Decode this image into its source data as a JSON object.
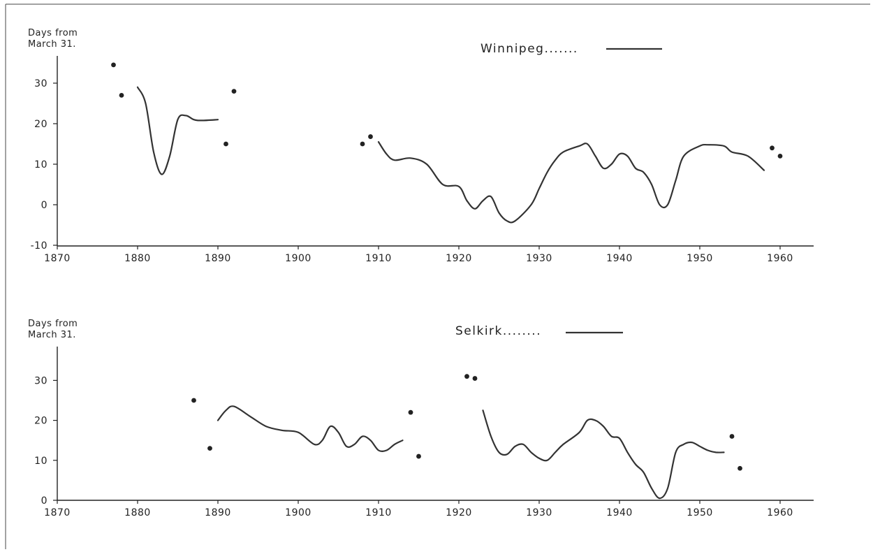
{
  "chart_data": [
    {
      "type": "line",
      "legend_label": "Winnipeg.......",
      "legend_position": "top-center",
      "ylabel_line1": "Days from",
      "ylabel_line2": "March 31.",
      "xlim": [
        1870,
        1964
      ],
      "ylim": [
        -10,
        36
      ],
      "x_ticks": [
        1870,
        1880,
        1890,
        1900,
        1910,
        1920,
        1930,
        1940,
        1950,
        1960
      ],
      "x_tick_labels": [
        "1870",
        "1880",
        "1890",
        "1900",
        "1910",
        "1920",
        "1930",
        "1940",
        "1950",
        "1960"
      ],
      "y_ticks": [
        -10,
        0,
        10,
        20,
        30
      ],
      "y_tick_labels": [
        "-10",
        "0",
        "10",
        "20",
        "30"
      ],
      "grid": false,
      "segments": [
        [
          [
            1880,
            29
          ],
          [
            1881,
            25
          ],
          [
            1882,
            13
          ],
          [
            1883,
            7.5
          ],
          [
            1884,
            12
          ],
          [
            1885,
            21
          ],
          [
            1886,
            22
          ],
          [
            1887,
            21
          ],
          [
            1888,
            20.8
          ],
          [
            1890,
            21
          ]
        ],
        [
          [
            1910,
            15.5
          ],
          [
            1911,
            12.5
          ],
          [
            1912,
            11
          ],
          [
            1914,
            11.5
          ],
          [
            1916,
            10
          ],
          [
            1918,
            5
          ],
          [
            1920,
            4.5
          ],
          [
            1921,
            1
          ],
          [
            1922,
            -1
          ],
          [
            1923,
            1
          ],
          [
            1924,
            2
          ],
          [
            1925,
            -2
          ],
          [
            1926,
            -4
          ],
          [
            1927,
            -4
          ],
          [
            1929,
            0
          ],
          [
            1930,
            4
          ],
          [
            1931,
            8
          ],
          [
            1932,
            11
          ],
          [
            1933,
            13
          ],
          [
            1935,
            14.5
          ],
          [
            1936,
            15
          ],
          [
            1937,
            12
          ],
          [
            1938,
            9
          ],
          [
            1939,
            10
          ],
          [
            1940,
            12.5
          ],
          [
            1941,
            12
          ],
          [
            1942,
            9
          ],
          [
            1943,
            8
          ],
          [
            1944,
            5
          ],
          [
            1945,
            0
          ],
          [
            1946,
            0
          ],
          [
            1947,
            6
          ],
          [
            1948,
            12
          ],
          [
            1950,
            14.5
          ],
          [
            1951,
            14.8
          ],
          [
            1953,
            14.5
          ],
          [
            1954,
            13
          ],
          [
            1956,
            12
          ],
          [
            1958,
            8.5
          ]
        ]
      ],
      "isolated_points": [
        [
          1877,
          34.5
        ],
        [
          1878,
          27
        ],
        [
          1891,
          15
        ],
        [
          1892,
          28
        ],
        [
          1908,
          15
        ],
        [
          1909,
          16.8
        ],
        [
          1959,
          14
        ],
        [
          1960,
          12
        ]
      ]
    },
    {
      "type": "line",
      "legend_label": "Selkirk........",
      "legend_position": "top-center",
      "ylabel_line1": "Days from",
      "ylabel_line2": "March 31.",
      "xlim": [
        1870,
        1964
      ],
      "ylim": [
        0,
        38
      ],
      "x_ticks": [
        1870,
        1880,
        1890,
        1900,
        1910,
        1920,
        1930,
        1940,
        1950,
        1960
      ],
      "x_tick_labels": [
        "1870",
        "1880",
        "1890",
        "1900",
        "1910",
        "1920",
        "1930",
        "1940",
        "1950",
        "1960"
      ],
      "y_ticks": [
        0,
        10,
        20,
        30
      ],
      "y_tick_labels": [
        "0",
        "10",
        "20",
        "30"
      ],
      "grid": false,
      "segments": [
        [
          [
            1890,
            20
          ],
          [
            1891,
            22.5
          ],
          [
            1892,
            23.5
          ],
          [
            1894,
            21
          ],
          [
            1896,
            18.5
          ],
          [
            1898,
            17.5
          ],
          [
            1900,
            17
          ],
          [
            1902,
            14
          ],
          [
            1903,
            15
          ],
          [
            1904,
            18.5
          ],
          [
            1905,
            17
          ],
          [
            1906,
            13.5
          ],
          [
            1907,
            14
          ],
          [
            1908,
            16
          ],
          [
            1909,
            15
          ],
          [
            1910,
            12.5
          ],
          [
            1911,
            12.5
          ],
          [
            1912,
            14
          ],
          [
            1913,
            15
          ]
        ],
        [
          [
            1923,
            22.5
          ],
          [
            1924,
            16
          ],
          [
            1925,
            12
          ],
          [
            1926,
            11.5
          ],
          [
            1927,
            13.5
          ],
          [
            1928,
            14
          ],
          [
            1929,
            12
          ],
          [
            1930,
            10.5
          ],
          [
            1931,
            10
          ],
          [
            1932,
            12
          ],
          [
            1933,
            14
          ],
          [
            1935,
            17
          ],
          [
            1936,
            20
          ],
          [
            1937,
            20
          ],
          [
            1938,
            18.5
          ],
          [
            1939,
            16
          ],
          [
            1940,
            15.5
          ],
          [
            1941,
            12
          ],
          [
            1942,
            9
          ],
          [
            1943,
            7
          ],
          [
            1944,
            3
          ],
          [
            1945,
            0.5
          ],
          [
            1946,
            3
          ],
          [
            1947,
            12
          ],
          [
            1948,
            14
          ],
          [
            1949,
            14.5
          ],
          [
            1950,
            13.5
          ],
          [
            1951,
            12.5
          ],
          [
            1952,
            12
          ],
          [
            1953,
            12
          ]
        ]
      ],
      "isolated_points": [
        [
          1887,
          25
        ],
        [
          1889,
          13
        ],
        [
          1914,
          22
        ],
        [
          1915,
          11
        ],
        [
          1921,
          31
        ],
        [
          1922,
          30.5
        ],
        [
          1954,
          16
        ],
        [
          1955,
          8
        ]
      ]
    }
  ]
}
